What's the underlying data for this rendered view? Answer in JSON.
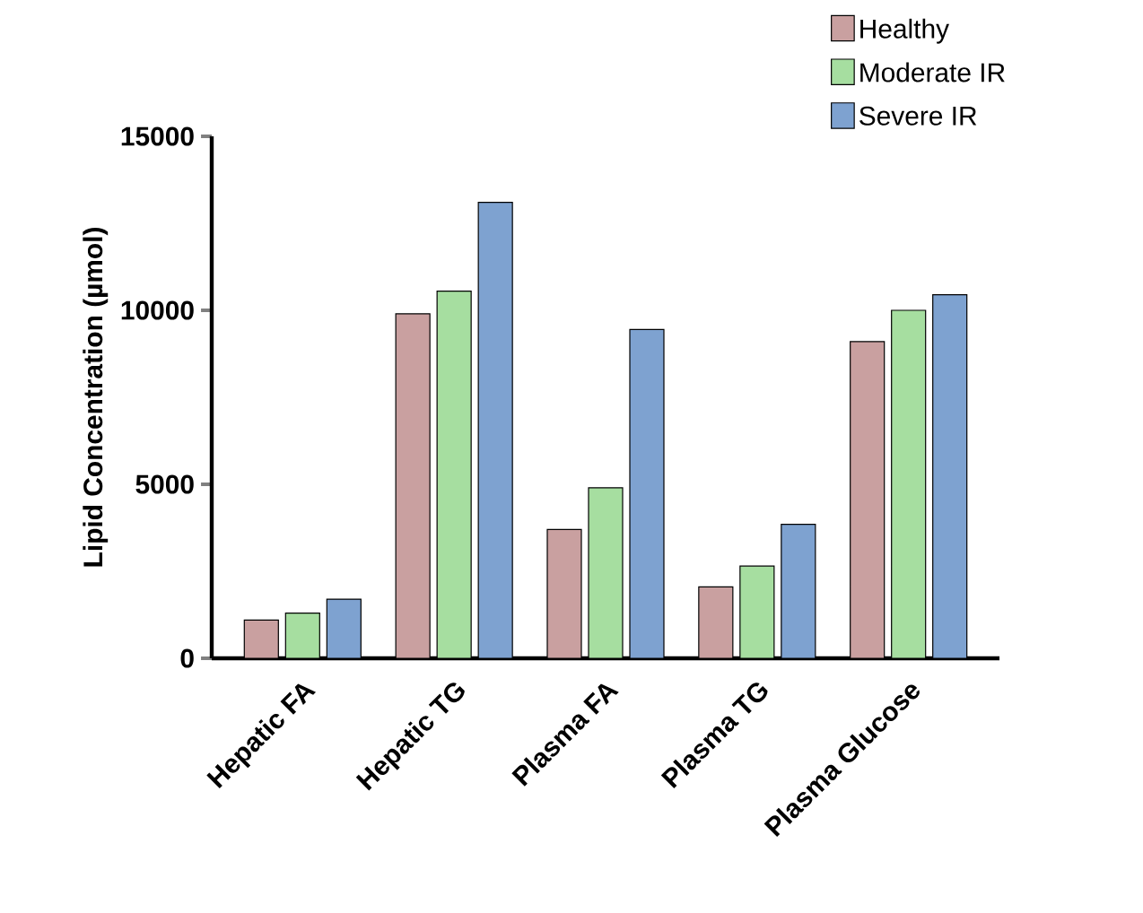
{
  "chart_data": {
    "type": "bar",
    "ylabel": "Lipid Concentration (µmol)",
    "categories": [
      "Hepatic FA",
      "Hepatic TG",
      "Plasma FA",
      "Plasma TG",
      "Plasma Glucose"
    ],
    "series": [
      {
        "name": "Healthy",
        "color": "#c9a0a0",
        "values": [
          1100,
          9900,
          3700,
          2050,
          9100
        ]
      },
      {
        "name": "Moderate IR",
        "color": "#a6dea0",
        "values": [
          1300,
          10550,
          4900,
          2650,
          10000
        ]
      },
      {
        "name": "Severe IR",
        "color": "#7ea2d0",
        "values": [
          1700,
          13100,
          9450,
          3850,
          10450
        ]
      }
    ],
    "ylim": [
      0,
      15000
    ],
    "yticks": [
      0,
      5000,
      10000,
      15000
    ],
    "grid": false,
    "legend": "top right"
  }
}
